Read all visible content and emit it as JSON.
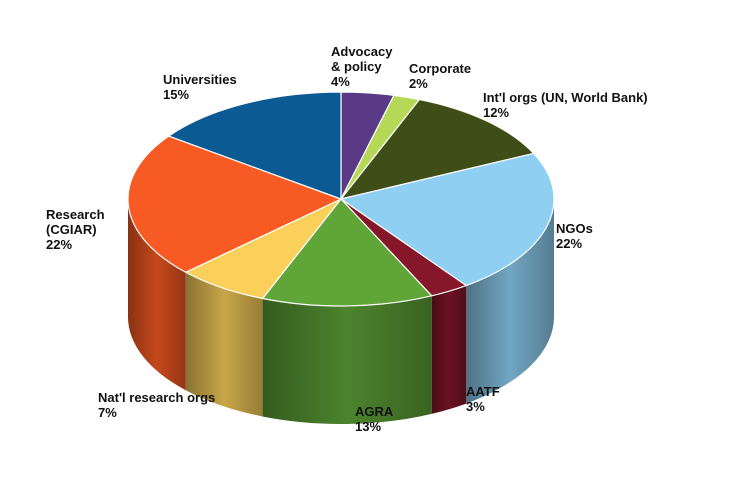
{
  "chart_data": {
    "type": "pie",
    "title": "",
    "style": "3d",
    "slices": [
      {
        "label": "Advocacy & policy",
        "label_lines": [
          "Advocacy",
          "& policy"
        ],
        "pct_text": "4%",
        "value": 4,
        "color": "#5a3a86"
      },
      {
        "label": "Corporate",
        "label_lines": [
          "Corporate"
        ],
        "pct_text": "2%",
        "value": 2,
        "color": "#b5d957"
      },
      {
        "label": "Int'l orgs (UN, World Bank)",
        "label_lines": [
          "Int'l orgs (UN, World Bank)"
        ],
        "pct_text": "12%",
        "value": 12,
        "color": "#3f4e16"
      },
      {
        "label": "NGOs",
        "label_lines": [
          "NGOs"
        ],
        "pct_text": "22%",
        "value": 22,
        "color": "#8ecff2"
      },
      {
        "label": "AATF",
        "label_lines": [
          "AATF"
        ],
        "pct_text": "3%",
        "value": 3,
        "color": "#86162a"
      },
      {
        "label": "AGRA",
        "label_lines": [
          "AGRA"
        ],
        "pct_text": "13%",
        "value": 13,
        "color": "#5fa538"
      },
      {
        "label": "Nat'l research orgs",
        "label_lines": [
          "Nat'l research orgs"
        ],
        "pct_text": "7%",
        "value": 7,
        "color": "#fbd05a"
      },
      {
        "label": "Research (CGIAR)",
        "label_lines": [
          "Research",
          "(CGIAR)"
        ],
        "pct_text": "22%",
        "value": 22,
        "color": "#f85a23"
      },
      {
        "label": "Universities",
        "label_lines": [
          "Universities"
        ],
        "pct_text": "15%",
        "value": 15,
        "color": "#0b5a93"
      }
    ]
  }
}
